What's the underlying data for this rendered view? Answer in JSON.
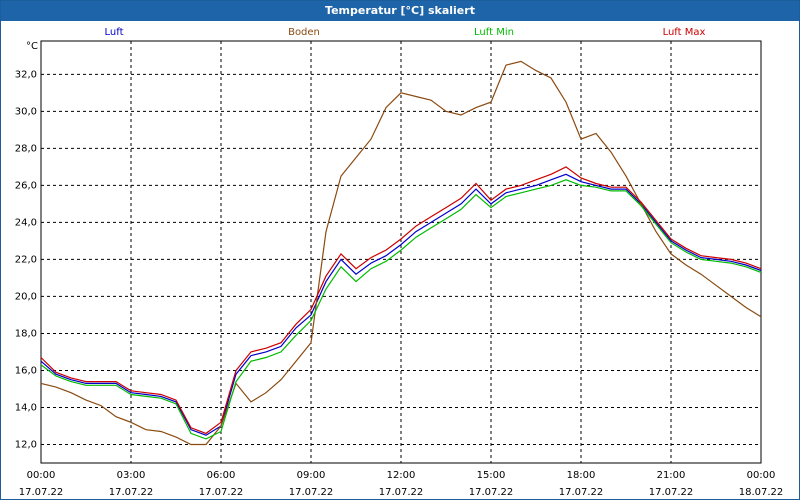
{
  "window": {
    "title": "Temperatur [°C] skaliert"
  },
  "colors": {
    "titlebar": "#1e64a8",
    "grid": "#000000",
    "plot_bg": "#ffffff"
  },
  "chart_data": {
    "type": "line",
    "ylabel": "°C",
    "ylim": [
      11,
      33.8
    ],
    "xlim": [
      0,
      24
    ],
    "grid": true,
    "legend_placement": "top",
    "yticks": [
      "12,0",
      "14,0",
      "16,0",
      "18,0",
      "20,0",
      "22,0",
      "24,0",
      "26,0",
      "28,0",
      "30,0",
      "32,0"
    ],
    "xticks": [
      {
        "time": "00:00",
        "date": "17.07.22"
      },
      {
        "time": "03:00",
        "date": "17.07.22"
      },
      {
        "time": "06:00",
        "date": "17.07.22"
      },
      {
        "time": "09:00",
        "date": "17.07.22"
      },
      {
        "time": "12:00",
        "date": "17.07.22"
      },
      {
        "time": "15:00",
        "date": "17.07.22"
      },
      {
        "time": "18:00",
        "date": "17.07.22"
      },
      {
        "time": "21:00",
        "date": "17.07.22"
      },
      {
        "time": "00:00",
        "date": "18.07.22"
      }
    ],
    "x": [
      0,
      0.5,
      1,
      1.5,
      2,
      2.5,
      3,
      3.5,
      4,
      4.5,
      5,
      5.5,
      6,
      6.5,
      7,
      7.5,
      8,
      8.5,
      9,
      9.5,
      10,
      10.5,
      11,
      11.5,
      12,
      12.5,
      13,
      13.5,
      14,
      14.5,
      15,
      15.5,
      16,
      16.5,
      17,
      17.5,
      18,
      18.5,
      19,
      19.5,
      20,
      20.5,
      21,
      21.5,
      22,
      22.5,
      23,
      23.5,
      24
    ],
    "series": [
      {
        "name": "Luft",
        "color": "#0000cc",
        "values": [
          16.5,
          15.8,
          15.5,
          15.3,
          15.3,
          15.3,
          14.8,
          14.7,
          14.6,
          14.3,
          12.8,
          12.5,
          13.0,
          15.8,
          16.8,
          17.0,
          17.3,
          18.3,
          19.0,
          20.8,
          22.0,
          21.2,
          21.8,
          22.2,
          22.8,
          23.5,
          24.0,
          24.5,
          25.0,
          25.8,
          25.0,
          25.6,
          25.8,
          26.0,
          26.3,
          26.6,
          26.2,
          26.0,
          25.8,
          25.8,
          25.0,
          24.0,
          23.0,
          22.5,
          22.1,
          22.0,
          21.9,
          21.7,
          21.4
        ]
      },
      {
        "name": "Boden",
        "color": "#8b4a10",
        "values": [
          15.3,
          15.1,
          14.8,
          14.4,
          14.1,
          13.5,
          13.2,
          12.8,
          12.7,
          12.4,
          12.0,
          12.0,
          13.0,
          15.3,
          14.3,
          14.8,
          15.5,
          16.5,
          17.5,
          23.5,
          26.5,
          27.5,
          28.5,
          30.2,
          31.0,
          30.8,
          30.6,
          30.0,
          29.8,
          30.2,
          30.5,
          32.5,
          32.7,
          32.2,
          31.8,
          30.5,
          28.5,
          28.8,
          27.8,
          26.5,
          25.0,
          23.5,
          22.3,
          21.7,
          21.2,
          20.6,
          20.0,
          19.4,
          18.9
        ]
      },
      {
        "name": "Luft Min",
        "color": "#00bb00",
        "values": [
          16.3,
          15.7,
          15.4,
          15.2,
          15.2,
          15.2,
          14.7,
          14.6,
          14.5,
          14.2,
          12.6,
          12.3,
          12.7,
          15.4,
          16.5,
          16.7,
          17.0,
          17.9,
          18.7,
          20.4,
          21.6,
          20.8,
          21.5,
          21.9,
          22.5,
          23.2,
          23.7,
          24.2,
          24.7,
          25.5,
          24.8,
          25.4,
          25.6,
          25.8,
          26.0,
          26.3,
          26.0,
          25.9,
          25.7,
          25.7,
          24.9,
          23.9,
          22.9,
          22.4,
          22.0,
          21.9,
          21.8,
          21.6,
          21.3
        ]
      },
      {
        "name": "Luft Max",
        "color": "#cc0000",
        "values": [
          16.7,
          15.9,
          15.6,
          15.4,
          15.4,
          15.4,
          14.9,
          14.8,
          14.7,
          14.4,
          12.9,
          12.6,
          13.2,
          16.0,
          17.0,
          17.2,
          17.5,
          18.5,
          19.3,
          21.1,
          22.3,
          21.5,
          22.1,
          22.5,
          23.1,
          23.8,
          24.3,
          24.8,
          25.3,
          26.1,
          25.2,
          25.8,
          26.0,
          26.3,
          26.6,
          27.0,
          26.4,
          26.1,
          25.9,
          25.9,
          25.1,
          24.1,
          23.1,
          22.6,
          22.2,
          22.1,
          22.0,
          21.8,
          21.5
        ]
      }
    ]
  }
}
